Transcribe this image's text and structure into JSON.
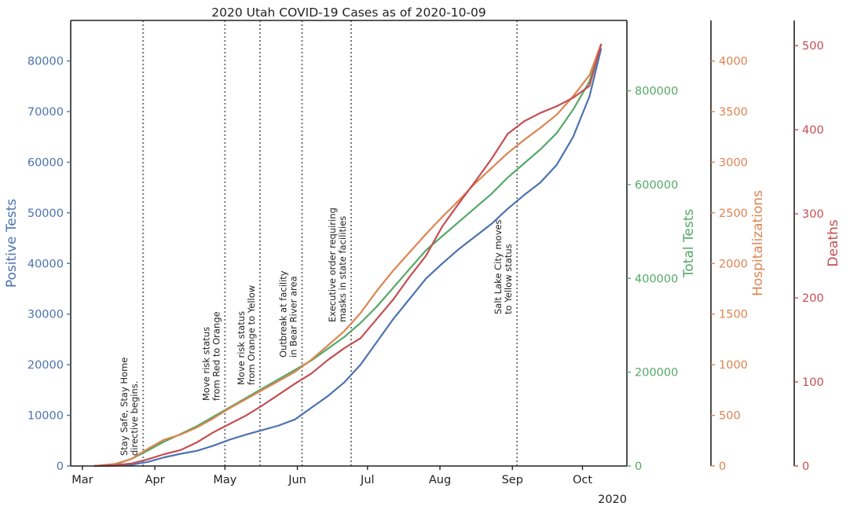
{
  "chart_data": {
    "type": "line",
    "title": "2020 Utah COVID-19 Cases as of 2020-10-09",
    "x_axis": {
      "ticks": [
        "Mar",
        "Apr",
        "May",
        "Jun",
        "Jul",
        "Aug",
        "Sep",
        "Oct"
      ],
      "tick_dates": [
        "2020-03-01",
        "2020-04-01",
        "2020-05-01",
        "2020-06-01",
        "2020-07-01",
        "2020-08-01",
        "2020-09-01",
        "2020-10-01"
      ],
      "offset_label": "2020",
      "range": [
        "2020-02-25",
        "2020-10-20"
      ]
    },
    "axes": [
      {
        "id": "positive",
        "label": "Positive Tests",
        "color": "#4c72b0",
        "side": "left",
        "range": [
          0,
          88000
        ],
        "ticks": [
          0,
          10000,
          20000,
          30000,
          40000,
          50000,
          60000,
          70000,
          80000
        ]
      },
      {
        "id": "tests",
        "label": "Total Tests",
        "color": "#55a868",
        "side": "right",
        "range": [
          0,
          950000
        ],
        "ticks": [
          0,
          200000,
          400000,
          600000,
          800000
        ]
      },
      {
        "id": "hosp",
        "label": "Hospitalizations",
        "color": "#dd8452",
        "side": "right",
        "range": [
          0,
          4400
        ],
        "ticks": [
          0,
          500,
          1000,
          1500,
          2000,
          2500,
          3000,
          3500,
          4000
        ]
      },
      {
        "id": "deaths",
        "label": "Deaths",
        "color": "#c44e52",
        "side": "right",
        "range": [
          0,
          530
        ],
        "ticks": [
          0,
          100,
          200,
          300,
          400,
          500
        ]
      }
    ],
    "series": [
      {
        "name": "Positive Tests",
        "axis": "positive",
        "color": "#4c72b0",
        "points": [
          [
            "2020-03-06",
            0
          ],
          [
            "2020-03-15",
            50
          ],
          [
            "2020-03-22",
            250
          ],
          [
            "2020-03-29",
            800
          ],
          [
            "2020-04-05",
            1700
          ],
          [
            "2020-04-12",
            2400
          ],
          [
            "2020-04-19",
            3000
          ],
          [
            "2020-04-26",
            4000
          ],
          [
            "2020-05-03",
            5200
          ],
          [
            "2020-05-10",
            6200
          ],
          [
            "2020-05-17",
            7100
          ],
          [
            "2020-05-24",
            8000
          ],
          [
            "2020-05-31",
            9200
          ],
          [
            "2020-06-07",
            11500
          ],
          [
            "2020-06-14",
            13800
          ],
          [
            "2020-06-21",
            16500
          ],
          [
            "2020-06-28",
            20000
          ],
          [
            "2020-07-05",
            24500
          ],
          [
            "2020-07-12",
            29000
          ],
          [
            "2020-07-19",
            33000
          ],
          [
            "2020-07-26",
            37000
          ],
          [
            "2020-08-02",
            40000
          ],
          [
            "2020-08-09",
            42800
          ],
          [
            "2020-08-16",
            45300
          ],
          [
            "2020-08-23",
            47800
          ],
          [
            "2020-08-30",
            50800
          ],
          [
            "2020-09-06",
            53500
          ],
          [
            "2020-09-13",
            56000
          ],
          [
            "2020-09-20",
            59500
          ],
          [
            "2020-09-27",
            65000
          ],
          [
            "2020-10-04",
            73000
          ],
          [
            "2020-10-09",
            82500
          ]
        ]
      },
      {
        "name": "Total Tests",
        "axis": "tests",
        "color": "#55a868",
        "points": [
          [
            "2020-03-06",
            0
          ],
          [
            "2020-03-15",
            3000
          ],
          [
            "2020-03-22",
            15000
          ],
          [
            "2020-03-29",
            33000
          ],
          [
            "2020-04-05",
            52000
          ],
          [
            "2020-04-12",
            68000
          ],
          [
            "2020-04-19",
            85000
          ],
          [
            "2020-04-26",
            105000
          ],
          [
            "2020-05-03",
            125000
          ],
          [
            "2020-05-10",
            145000
          ],
          [
            "2020-05-17",
            165000
          ],
          [
            "2020-05-24",
            185000
          ],
          [
            "2020-05-31",
            205000
          ],
          [
            "2020-06-07",
            225000
          ],
          [
            "2020-06-14",
            250000
          ],
          [
            "2020-06-21",
            275000
          ],
          [
            "2020-06-28",
            305000
          ],
          [
            "2020-07-05",
            340000
          ],
          [
            "2020-07-12",
            380000
          ],
          [
            "2020-07-19",
            420000
          ],
          [
            "2020-07-26",
            460000
          ],
          [
            "2020-08-02",
            490000
          ],
          [
            "2020-08-09",
            520000
          ],
          [
            "2020-08-16",
            550000
          ],
          [
            "2020-08-23",
            580000
          ],
          [
            "2020-08-30",
            615000
          ],
          [
            "2020-09-06",
            645000
          ],
          [
            "2020-09-13",
            675000
          ],
          [
            "2020-09-20",
            710000
          ],
          [
            "2020-09-27",
            760000
          ],
          [
            "2020-10-04",
            820000
          ],
          [
            "2020-10-09",
            900000
          ]
        ]
      },
      {
        "name": "Hospitalizations",
        "axis": "hosp",
        "color": "#dd8452",
        "points": [
          [
            "2020-03-06",
            0
          ],
          [
            "2020-03-15",
            20
          ],
          [
            "2020-03-22",
            70
          ],
          [
            "2020-03-29",
            170
          ],
          [
            "2020-04-05",
            260
          ],
          [
            "2020-04-12",
            310
          ],
          [
            "2020-04-19",
            380
          ],
          [
            "2020-04-26",
            470
          ],
          [
            "2020-05-03",
            570
          ],
          [
            "2020-05-10",
            660
          ],
          [
            "2020-05-17",
            750
          ],
          [
            "2020-05-24",
            840
          ],
          [
            "2020-05-31",
            930
          ],
          [
            "2020-06-07",
            1050
          ],
          [
            "2020-06-14",
            1190
          ],
          [
            "2020-06-21",
            1330
          ],
          [
            "2020-06-28",
            1510
          ],
          [
            "2020-07-05",
            1730
          ],
          [
            "2020-07-12",
            1930
          ],
          [
            "2020-07-19",
            2110
          ],
          [
            "2020-07-26",
            2290
          ],
          [
            "2020-08-02",
            2460
          ],
          [
            "2020-08-09",
            2620
          ],
          [
            "2020-08-16",
            2790
          ],
          [
            "2020-08-23",
            2940
          ],
          [
            "2020-08-30",
            3090
          ],
          [
            "2020-09-06",
            3220
          ],
          [
            "2020-09-13",
            3340
          ],
          [
            "2020-09-20",
            3470
          ],
          [
            "2020-09-27",
            3650
          ],
          [
            "2020-10-04",
            3860
          ],
          [
            "2020-10-09",
            4170
          ]
        ]
      },
      {
        "name": "Deaths",
        "axis": "deaths",
        "color": "#c44e52",
        "points": [
          [
            "2020-03-06",
            0
          ],
          [
            "2020-03-15",
            1
          ],
          [
            "2020-03-22",
            3
          ],
          [
            "2020-03-29",
            8
          ],
          [
            "2020-04-05",
            14
          ],
          [
            "2020-04-12",
            19
          ],
          [
            "2020-04-19",
            28
          ],
          [
            "2020-04-26",
            40
          ],
          [
            "2020-05-03",
            50
          ],
          [
            "2020-05-10",
            60
          ],
          [
            "2020-05-17",
            72
          ],
          [
            "2020-05-24",
            85
          ],
          [
            "2020-05-31",
            98
          ],
          [
            "2020-06-07",
            110
          ],
          [
            "2020-06-14",
            126
          ],
          [
            "2020-06-21",
            140
          ],
          [
            "2020-06-28",
            152
          ],
          [
            "2020-07-05",
            175
          ],
          [
            "2020-07-12",
            198
          ],
          [
            "2020-07-19",
            225
          ],
          [
            "2020-07-26",
            250
          ],
          [
            "2020-08-02",
            285
          ],
          [
            "2020-08-09",
            312
          ],
          [
            "2020-08-16",
            338
          ],
          [
            "2020-08-23",
            365
          ],
          [
            "2020-08-30",
            395
          ],
          [
            "2020-09-06",
            410
          ],
          [
            "2020-09-13",
            420
          ],
          [
            "2020-09-20",
            428
          ],
          [
            "2020-09-27",
            438
          ],
          [
            "2020-10-04",
            452
          ],
          [
            "2020-10-09",
            502
          ]
        ]
      }
    ],
    "events": [
      {
        "date": "2020-03-27",
        "lines": [
          "Stay Safe, Stay Home",
          "directive begins."
        ]
      },
      {
        "date": "2020-05-01",
        "lines": [
          "Move risk status",
          "from Red to Orange"
        ]
      },
      {
        "date": "2020-05-16",
        "lines": [
          "Move risk status",
          "from Orange to Yellow"
        ]
      },
      {
        "date": "2020-06-03",
        "lines": [
          "Outbreak at facility",
          "in Bear River area"
        ]
      },
      {
        "date": "2020-06-24",
        "lines": [
          "Executive order requiring",
          "masks in state facilities"
        ]
      },
      {
        "date": "2020-09-03",
        "lines": [
          "Salt Lake City moves",
          "to Yellow status"
        ]
      }
    ],
    "grid": false,
    "legend": "none"
  }
}
